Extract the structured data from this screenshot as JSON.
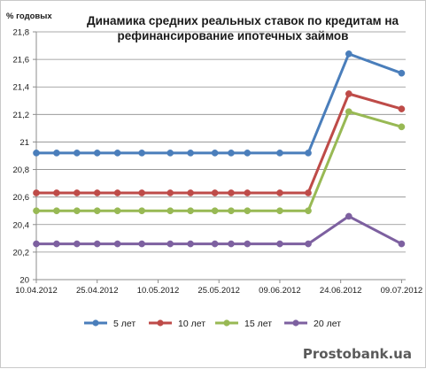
{
  "watermark": "Prostobank.ua",
  "chart_data": {
    "type": "line",
    "title_lines": [
      "Динамика средних реальных ставок по кредитам на",
      "рефинансирование ипотечных займов"
    ],
    "ylabel": "% годовых",
    "xlabel": "",
    "ylim": [
      20,
      21.8
    ],
    "ytick_step": 0.2,
    "ytick_labels": [
      "20",
      "20,2",
      "20,4",
      "20,6",
      "20,8",
      "21",
      "21,2",
      "21,4",
      "21,6",
      "21,8"
    ],
    "x_range": [
      "2012-04-10",
      "2012-07-10"
    ],
    "xtick_dates": [
      "2012-04-10",
      "2012-04-25",
      "2012-05-10",
      "2012-05-25",
      "2012-06-09",
      "2012-06-24",
      "2012-07-09"
    ],
    "xtick_labels": [
      "10.04.2012",
      "25.04.2012",
      "10.05.2012",
      "25.05.2012",
      "09.06.2012",
      "24.06.2012",
      "09.07.2012"
    ],
    "grid": {
      "horizontal": true,
      "vertical": false
    },
    "legend_position": "bottom",
    "x": [
      "2012-04-10",
      "2012-04-15",
      "2012-04-20",
      "2012-04-25",
      "2012-04-30",
      "2012-05-06",
      "2012-05-13",
      "2012-05-18",
      "2012-05-24",
      "2012-05-28",
      "2012-06-01",
      "2012-06-09",
      "2012-06-16",
      "2012-06-26",
      "2012-07-09"
    ],
    "series": [
      {
        "name": "5 лет",
        "color": "#4a7ebb",
        "values": [
          20.92,
          20.92,
          20.92,
          20.92,
          20.92,
          20.92,
          20.92,
          20.92,
          20.92,
          20.92,
          20.92,
          20.92,
          20.92,
          21.64,
          21.5
        ]
      },
      {
        "name": "10 лет",
        "color": "#be4b48",
        "values": [
          20.63,
          20.63,
          20.63,
          20.63,
          20.63,
          20.63,
          20.63,
          20.63,
          20.63,
          20.63,
          20.63,
          20.63,
          20.63,
          21.35,
          21.24
        ]
      },
      {
        "name": "15 лет",
        "color": "#98b954",
        "values": [
          20.5,
          20.5,
          20.5,
          20.5,
          20.5,
          20.5,
          20.5,
          20.5,
          20.5,
          20.5,
          20.5,
          20.5,
          20.5,
          21.22,
          21.11
        ]
      },
      {
        "name": "20 лет",
        "color": "#7d60a0",
        "values": [
          20.26,
          20.26,
          20.26,
          20.26,
          20.26,
          20.26,
          20.26,
          20.26,
          20.26,
          20.26,
          20.26,
          20.26,
          20.26,
          20.46,
          20.26
        ]
      }
    ]
  }
}
